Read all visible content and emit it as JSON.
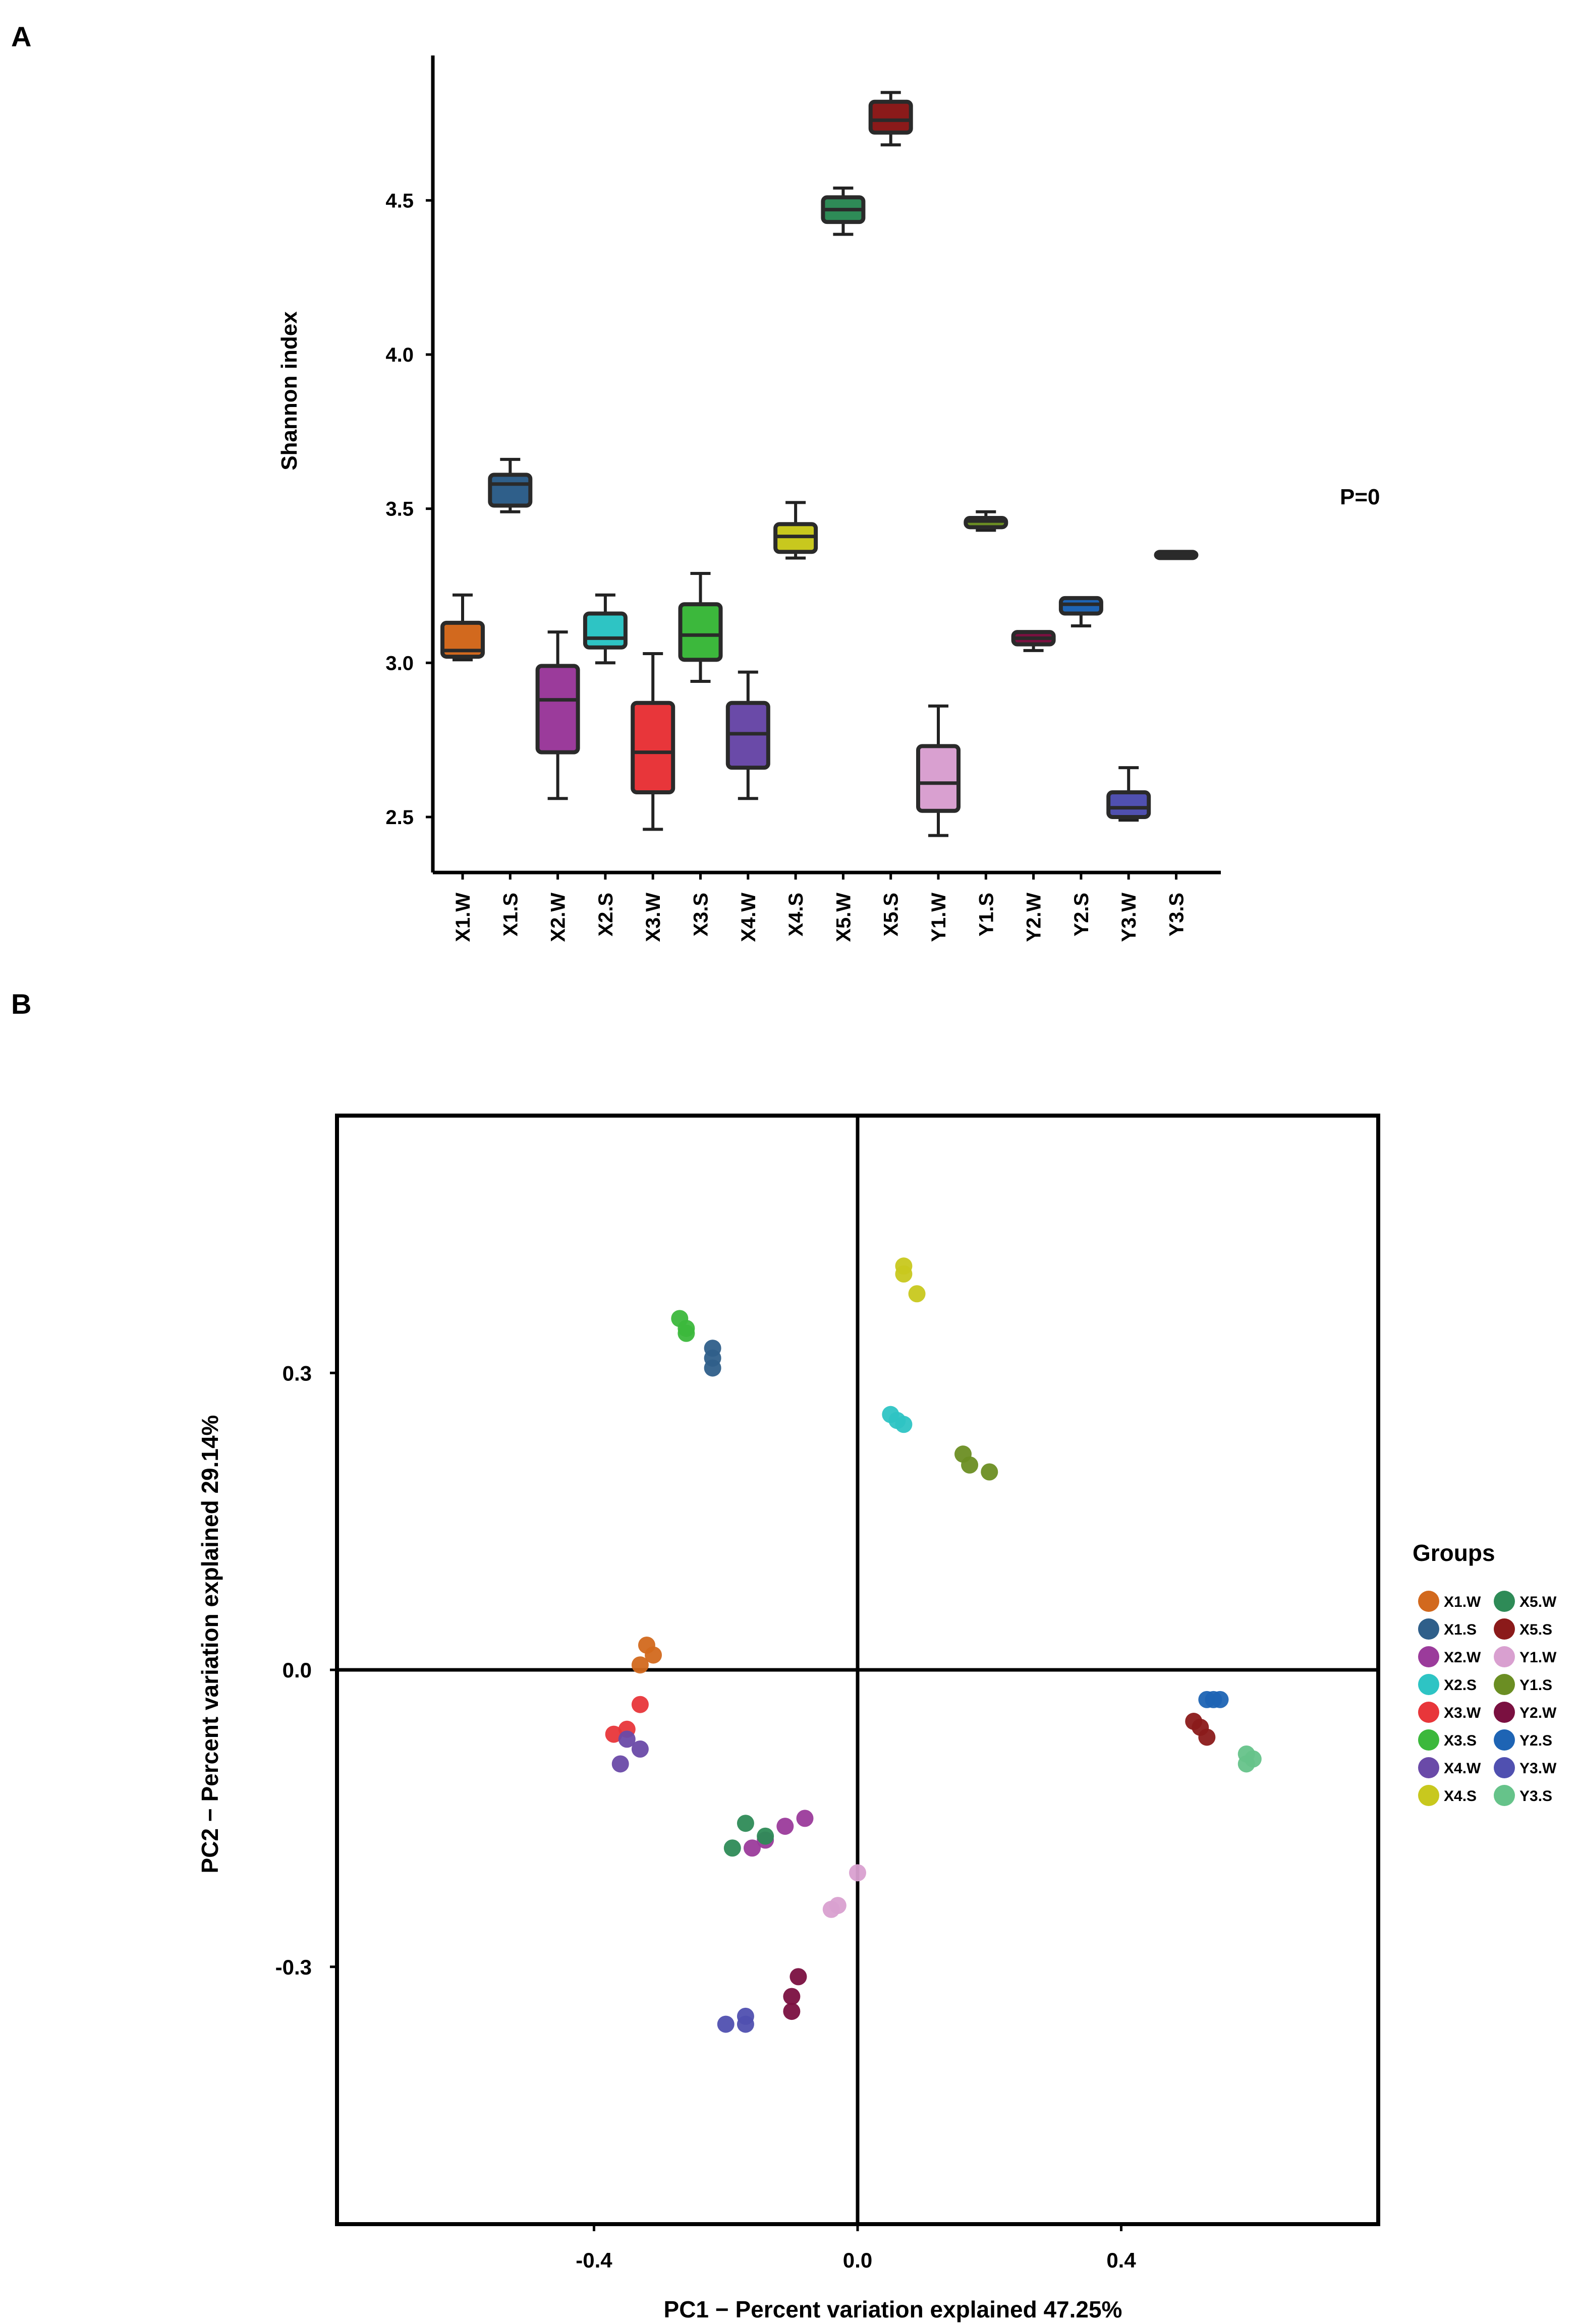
{
  "chart_data": [
    {
      "type": "box",
      "panel_label": "A",
      "ylabel": "Shannon index",
      "annotation": "P=0",
      "yticks": [
        2.5,
        3.0,
        3.5,
        4.0,
        4.5
      ],
      "ylim": [
        2.32,
        4.97
      ],
      "categories": [
        "X1.W",
        "X1.S",
        "X2.W",
        "X2.S",
        "X3.W",
        "X3.S",
        "X4.W",
        "X4.S",
        "X5.W",
        "X5.S",
        "Y1.W",
        "Y1.S",
        "Y2.W",
        "Y2.S",
        "Y3.W",
        "Y3.S"
      ],
      "boxes": [
        {
          "name": "X1.W",
          "min": 3.01,
          "q1": 3.02,
          "median": 3.04,
          "q3": 3.13,
          "max": 3.22,
          "color": "#d2691e"
        },
        {
          "name": "X1.S",
          "min": 3.49,
          "q1": 3.51,
          "median": 3.58,
          "q3": 3.61,
          "max": 3.66,
          "color": "#2f5f8a"
        },
        {
          "name": "X2.W",
          "min": 2.56,
          "q1": 2.71,
          "median": 2.88,
          "q3": 2.99,
          "max": 3.1,
          "color": "#9b3b9b"
        },
        {
          "name": "X2.S",
          "min": 3.0,
          "q1": 3.05,
          "median": 3.08,
          "q3": 3.16,
          "max": 3.22,
          "color": "#2ec4c4"
        },
        {
          "name": "X3.W",
          "min": 2.46,
          "q1": 2.58,
          "median": 2.71,
          "q3": 2.87,
          "max": 3.03,
          "color": "#e8363a"
        },
        {
          "name": "X3.S",
          "min": 2.94,
          "q1": 3.01,
          "median": 3.09,
          "q3": 3.19,
          "max": 3.29,
          "color": "#3cb83c"
        },
        {
          "name": "X4.W",
          "min": 2.56,
          "q1": 2.66,
          "median": 2.77,
          "q3": 2.87,
          "max": 2.97,
          "color": "#6a4aa8"
        },
        {
          "name": "X4.S",
          "min": 3.34,
          "q1": 3.36,
          "median": 3.41,
          "q3": 3.45,
          "max": 3.52,
          "color": "#c8c81e"
        },
        {
          "name": "X5.W",
          "min": 4.39,
          "q1": 4.43,
          "median": 4.47,
          "q3": 4.51,
          "max": 4.54,
          "color": "#2e8b57"
        },
        {
          "name": "X5.S",
          "min": 4.68,
          "q1": 4.72,
          "median": 4.76,
          "q3": 4.82,
          "max": 4.85,
          "color": "#8b1a1a"
        },
        {
          "name": "Y1.W",
          "min": 2.44,
          "q1": 2.52,
          "median": 2.61,
          "q3": 2.73,
          "max": 2.86,
          "color": "#d9a0d0"
        },
        {
          "name": "Y1.S",
          "min": 3.43,
          "q1": 3.44,
          "median": 3.46,
          "q3": 3.47,
          "max": 3.49,
          "color": "#6b8e23"
        },
        {
          "name": "Y2.W",
          "min": 3.04,
          "q1": 3.06,
          "median": 3.08,
          "q3": 3.1,
          "max": 3.1,
          "color": "#7a1040"
        },
        {
          "name": "Y2.S",
          "min": 3.12,
          "q1": 3.16,
          "median": 3.19,
          "q3": 3.21,
          "max": 3.21,
          "color": "#1e64b4"
        },
        {
          "name": "Y3.W",
          "min": 2.49,
          "q1": 2.5,
          "median": 2.53,
          "q3": 2.58,
          "max": 2.66,
          "color": "#5050b0"
        },
        {
          "name": "Y3.S",
          "min": 3.34,
          "q1": 3.34,
          "median": 3.35,
          "q3": 3.36,
          "max": 3.36,
          "color": "#333333"
        }
      ]
    },
    {
      "type": "scatter",
      "panel_label": "B",
      "xlabel": "PC1 − Percent variation explained 47.25%",
      "ylabel": "PC2 − Percent variation explained 29.14%",
      "xlim": [
        -0.79,
        0.79
      ],
      "ylim": [
        -0.56,
        0.56
      ],
      "xticks": [
        -0.4,
        0.0,
        0.4
      ],
      "xtick_labels": [
        "-0.4",
        "0.0",
        "0.4"
      ],
      "yticks": [
        0.3,
        0.0,
        -0.3
      ],
      "ytick_labels": [
        "0.3",
        "0.0",
        "-0.3"
      ],
      "legend_title": "Groups",
      "legend_position": "right",
      "series": [
        {
          "name": "X1.W",
          "color": "#d2691e",
          "x": [
            -0.32,
            -0.31,
            -0.33
          ],
          "y": [
            0.025,
            0.015,
            0.005
          ]
        },
        {
          "name": "X1.S",
          "color": "#2f5f8a",
          "x": [
            -0.22,
            -0.22,
            -0.22
          ],
          "y": [
            0.325,
            0.315,
            0.305
          ]
        },
        {
          "name": "X2.W",
          "color": "#9b3b9b",
          "x": [
            -0.08,
            -0.11,
            -0.14,
            -0.16
          ],
          "y": [
            -0.15,
            -0.158,
            -0.172,
            -0.18
          ]
        },
        {
          "name": "X2.S",
          "color": "#2ec4c4",
          "x": [
            0.05,
            0.06,
            0.07
          ],
          "y": [
            0.258,
            0.252,
            0.248
          ]
        },
        {
          "name": "X3.W",
          "color": "#e8363a",
          "x": [
            -0.33,
            -0.35,
            -0.37
          ],
          "y": [
            -0.035,
            -0.06,
            -0.065
          ]
        },
        {
          "name": "X3.S",
          "color": "#3cb83c",
          "x": [
            -0.27,
            -0.26,
            -0.26
          ],
          "y": [
            0.355,
            0.345,
            0.34
          ]
        },
        {
          "name": "X4.W",
          "color": "#6a4aa8",
          "x": [
            -0.35,
            -0.33,
            -0.36
          ],
          "y": [
            -0.07,
            -0.08,
            -0.095
          ]
        },
        {
          "name": "X4.S",
          "color": "#c8c81e",
          "x": [
            0.07,
            0.07,
            0.09
          ],
          "y": [
            0.408,
            0.4,
            0.38
          ]
        },
        {
          "name": "X5.W",
          "color": "#2e8b57",
          "x": [
            -0.17,
            -0.14,
            -0.19
          ],
          "y": [
            -0.155,
            -0.168,
            -0.18
          ]
        },
        {
          "name": "X5.S",
          "color": "#8b1a1a",
          "x": [
            0.51,
            0.52,
            0.53
          ],
          "y": [
            -0.052,
            -0.058,
            -0.068
          ]
        },
        {
          "name": "Y1.W",
          "color": "#d9a0d0",
          "x": [
            0.0,
            -0.03,
            -0.04
          ],
          "y": [
            -0.205,
            -0.238,
            -0.242
          ]
        },
        {
          "name": "Y1.S",
          "color": "#6b8e23",
          "x": [
            0.16,
            0.17,
            0.2
          ],
          "y": [
            0.218,
            0.207,
            0.2
          ]
        },
        {
          "name": "Y2.W",
          "color": "#7a1040",
          "x": [
            -0.09,
            -0.1,
            -0.1
          ],
          "y": [
            -0.31,
            -0.33,
            -0.345
          ]
        },
        {
          "name": "Y2.S",
          "color": "#1e64b4",
          "x": [
            0.53,
            0.54,
            0.55
          ],
          "y": [
            -0.03,
            -0.03,
            -0.03
          ]
        },
        {
          "name": "Y3.W",
          "color": "#5050b0",
          "x": [
            -0.2,
            -0.17,
            -0.17
          ],
          "y": [
            -0.358,
            -0.35,
            -0.358
          ]
        },
        {
          "name": "Y3.S",
          "color": "#66c38a",
          "x": [
            0.59,
            0.6,
            0.59
          ],
          "y": [
            -0.085,
            -0.09,
            -0.095
          ]
        }
      ]
    }
  ]
}
